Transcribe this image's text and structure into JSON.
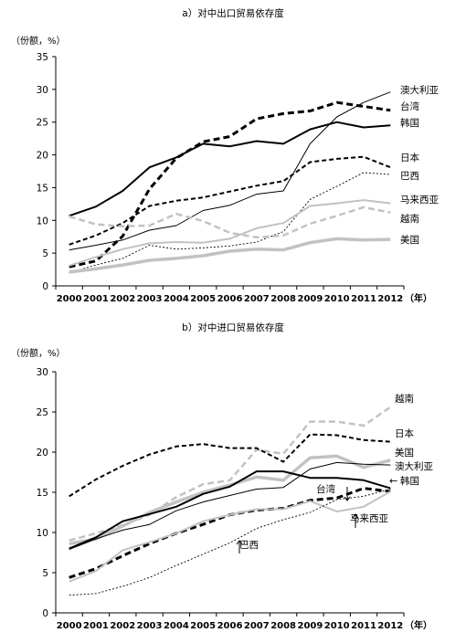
{
  "chart_data": [
    {
      "type": "line",
      "title": "a）对中出口贸易依存度",
      "ylabel": "（份额，%）",
      "xlabel": "（年）",
      "ylim": [
        0,
        35
      ],
      "yticks": [
        0,
        5,
        10,
        15,
        20,
        25,
        30,
        35
      ],
      "x": [
        "2000",
        "2001",
        "2002",
        "2003",
        "2004",
        "2005",
        "2006",
        "2007",
        "2008",
        "2009",
        "2010",
        "2011",
        "2012"
      ],
      "series": [
        {
          "name": "澳大利亚",
          "values": [
            5.5,
            6.2,
            7.0,
            8.5,
            9.2,
            11.5,
            12.3,
            14.0,
            14.5,
            21.7,
            25.8,
            28.0,
            29.6
          ]
        },
        {
          "name": "台湾",
          "values": [
            2.9,
            3.8,
            7.6,
            14.8,
            19.5,
            22.0,
            22.8,
            25.5,
            26.3,
            26.7,
            28.0,
            27.4,
            26.8
          ]
        },
        {
          "name": "韩国",
          "values": [
            10.7,
            12.1,
            14.5,
            18.1,
            19.6,
            21.7,
            21.3,
            22.1,
            21.7,
            23.9,
            25.0,
            24.2,
            24.5
          ]
        },
        {
          "name": "日本",
          "values": [
            6.3,
            7.7,
            9.6,
            12.2,
            13.0,
            13.5,
            14.4,
            15.3,
            16.0,
            18.9,
            19.4,
            19.7,
            18.1
          ]
        },
        {
          "name": "巴西",
          "values": [
            2.0,
            3.2,
            4.2,
            6.2,
            5.6,
            5.8,
            6.1,
            6.7,
            8.3,
            13.2,
            15.2,
            17.3,
            17.0
          ]
        },
        {
          "name": "马来西亚",
          "values": [
            3.1,
            4.4,
            5.6,
            6.5,
            6.7,
            6.6,
            7.2,
            8.8,
            9.6,
            12.2,
            12.6,
            13.1,
            12.6
          ]
        },
        {
          "name": "越南",
          "values": [
            10.6,
            9.4,
            9.1,
            9.2,
            11.0,
            9.9,
            8.1,
            7.4,
            7.7,
            9.5,
            10.7,
            12.0,
            11.2
          ]
        },
        {
          "name": "美国",
          "values": [
            2.1,
            2.6,
            3.2,
            3.9,
            4.2,
            4.6,
            5.3,
            5.6,
            5.5,
            6.6,
            7.2,
            7.0,
            7.1
          ]
        }
      ]
    },
    {
      "type": "line",
      "title": "b）对中进口贸易依存度",
      "ylabel": "（份额，%）",
      "xlabel": "（年）",
      "ylim": [
        0,
        30
      ],
      "yticks": [
        0,
        5,
        10,
        15,
        20,
        25,
        30
      ],
      "x": [
        "2000",
        "2001",
        "2002",
        "2003",
        "2004",
        "2005",
        "2006",
        "2007",
        "2008",
        "2009",
        "2010",
        "2011",
        "2012"
      ],
      "series": [
        {
          "name": "越南",
          "values": [
            9.0,
            9.9,
            10.9,
            12.2,
            14.4,
            16.0,
            16.5,
            20.3,
            19.8,
            23.8,
            23.8,
            23.3,
            25.6
          ]
        },
        {
          "name": "日本",
          "values": [
            14.5,
            16.6,
            18.3,
            19.7,
            20.7,
            21.0,
            20.5,
            20.5,
            18.8,
            22.2,
            22.1,
            21.5,
            21.3
          ]
        },
        {
          "name": "美国",
          "values": [
            8.6,
            9.2,
            10.8,
            12.5,
            13.8,
            15.0,
            15.9,
            16.9,
            16.5,
            19.3,
            19.5,
            18.1,
            19.0
          ]
        },
        {
          "name": "澳大利亚",
          "values": [
            7.9,
            9.2,
            10.3,
            11.0,
            12.7,
            13.8,
            14.6,
            15.4,
            15.6,
            17.9,
            18.7,
            18.5,
            18.4
          ]
        },
        {
          "name": "台湾",
          "values": [
            4.4,
            5.5,
            7.1,
            8.6,
            9.9,
            11.0,
            12.2,
            12.8,
            13.0,
            14.0,
            14.3,
            15.5,
            15.1
          ]
        },
        {
          "name": "韩国",
          "values": [
            8.0,
            9.4,
            11.4,
            12.3,
            13.2,
            14.8,
            15.7,
            17.6,
            17.6,
            16.8,
            16.8,
            16.5,
            15.5
          ]
        },
        {
          "name": "马来西亚",
          "values": [
            3.9,
            5.2,
            7.8,
            8.8,
            9.9,
            11.4,
            12.2,
            12.9,
            12.9,
            13.9,
            12.6,
            13.2,
            15.1
          ]
        },
        {
          "name": "巴西",
          "values": [
            2.2,
            2.4,
            3.3,
            4.4,
            5.9,
            7.3,
            8.7,
            10.5,
            11.6,
            12.5,
            14.1,
            14.5,
            15.4
          ]
        }
      ],
      "annotations": [
        "台湾",
        "韩国",
        "马来西亚",
        "巴西"
      ]
    }
  ]
}
